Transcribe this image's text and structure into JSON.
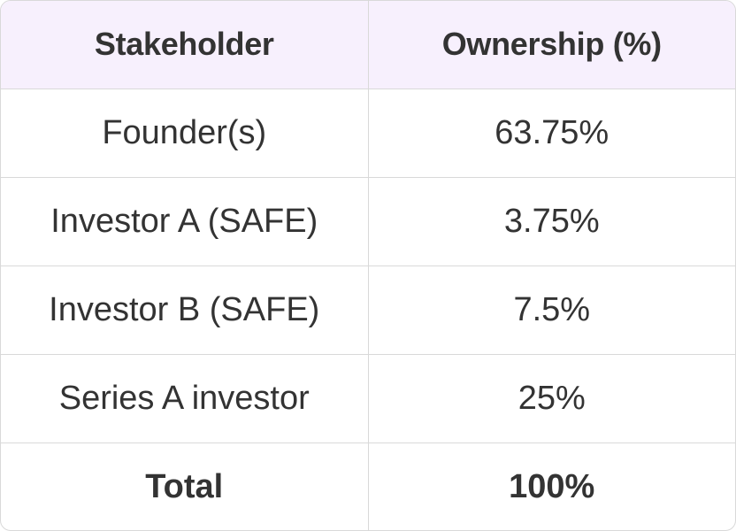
{
  "table": {
    "headers": [
      "Stakeholder",
      "Ownership (%)"
    ],
    "rows": [
      [
        "Founder(s)",
        "63.75%"
      ],
      [
        "Investor A (SAFE)",
        "3.75%"
      ],
      [
        "Investor B (SAFE)",
        "7.5%"
      ],
      [
        "Series A investor",
        "25%"
      ]
    ],
    "total": [
      "Total",
      "100%"
    ]
  },
  "colors": {
    "header_background": "#f7f0fd",
    "border": "#d9d9d9",
    "text": "#333333"
  }
}
